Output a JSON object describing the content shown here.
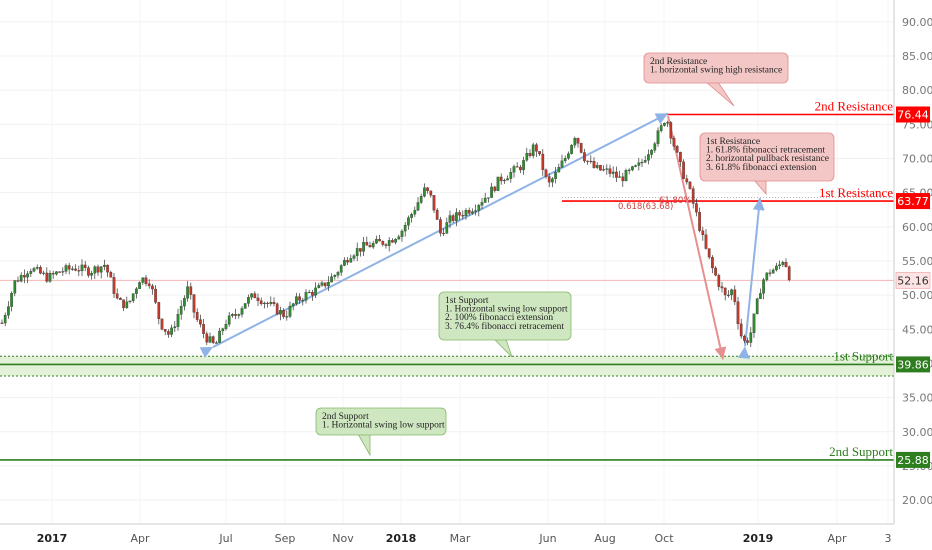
{
  "chart_data": {
    "type": "candlestick",
    "ylim": [
      16.5,
      93.2
    ],
    "x_ticks": [
      {
        "label": "2017",
        "bold": true
      },
      {
        "label": "Apr",
        "bold": false
      },
      {
        "label": "Jul",
        "bold": false
      },
      {
        "label": "Sep",
        "bold": false
      },
      {
        "label": "Nov",
        "bold": false
      },
      {
        "label": "2018",
        "bold": true
      },
      {
        "label": "Mar",
        "bold": false
      },
      {
        "label": "Jun",
        "bold": false
      },
      {
        "label": "Aug",
        "bold": false
      },
      {
        "label": "Oct",
        "bold": false
      },
      {
        "label": "2019",
        "bold": true
      },
      {
        "label": "Apr",
        "bold": false
      },
      {
        "label": "3",
        "bold": false
      }
    ],
    "y_ticks": [
      "20.00",
      "25.00",
      "30.00",
      "35.00",
      "40.00",
      "45.00",
      "50.00",
      "55.00",
      "60.00",
      "65.00",
      "70.00",
      "75.00",
      "80.00",
      "85.00",
      "90.00"
    ],
    "y_tick_values": [
      20,
      25,
      30,
      35,
      40,
      45,
      50,
      55,
      60,
      65,
      70,
      75,
      80,
      85,
      90
    ],
    "levels": [
      {
        "name": "2nd Resistance",
        "value": 76.44,
        "badge": "76.44",
        "color": "#ff0000"
      },
      {
        "name": "1st Resistance",
        "value": 63.77,
        "badge": "63.77",
        "color": "#ff0000"
      },
      {
        "name": "1st Support",
        "value": 39.86,
        "badge": "39.86",
        "color": "#2e7d1e"
      },
      {
        "name": "2nd Support",
        "value": 25.88,
        "badge": "25.88",
        "color": "#2e7d1e"
      }
    ],
    "current_price": {
      "value": 52.16,
      "badge": "52.16"
    },
    "fib_labels": [
      "0.618(63.68)",
      "61.80%"
    ],
    "annotations": [
      {
        "id": "res2",
        "lines": [
          "2nd Resistance",
          "1. horizontal swing high resistance"
        ]
      },
      {
        "id": "res1",
        "lines": [
          "1st Resistance",
          "1. 61.8% fibonacci retracement",
          "2. horizontal pullback resistance",
          "3. 61.8% fibonacci extension"
        ]
      },
      {
        "id": "sup1",
        "lines": [
          "1st Support",
          "1. Horizontal swing low support",
          "2. 100% fibonacci extension",
          "3. 76.4% fibonacci retracement"
        ]
      },
      {
        "id": "sup2",
        "lines": [
          "2nd Support",
          "1. Horizontal swing low support"
        ]
      }
    ],
    "price_path": [
      [
        0,
        45
      ],
      [
        15,
        52
      ],
      [
        30,
        54
      ],
      [
        48,
        52.5
      ],
      [
        60,
        53.5
      ],
      [
        75,
        54
      ],
      [
        90,
        53.5
      ],
      [
        105,
        54.5
      ],
      [
        118,
        49
      ],
      [
        128,
        48.5
      ],
      [
        140,
        52.5
      ],
      [
        150,
        52
      ],
      [
        160,
        46
      ],
      [
        170,
        44
      ],
      [
        180,
        48
      ],
      [
        188,
        51
      ],
      [
        195,
        47
      ],
      [
        205,
        44
      ],
      [
        215,
        42.5
      ],
      [
        225,
        46
      ],
      [
        235,
        47
      ],
      [
        245,
        49
      ],
      [
        255,
        50
      ],
      [
        265,
        49
      ],
      [
        275,
        48
      ],
      [
        285,
        47
      ],
      [
        295,
        49
      ],
      [
        305,
        50
      ],
      [
        320,
        51
      ],
      [
        335,
        53
      ],
      [
        350,
        56
      ],
      [
        362,
        57
      ],
      [
        375,
        57.5
      ],
      [
        390,
        58
      ],
      [
        402,
        59.5
      ],
      [
        412,
        62
      ],
      [
        425,
        65.5
      ],
      [
        432,
        64
      ],
      [
        440,
        59
      ],
      [
        450,
        61
      ],
      [
        462,
        62
      ],
      [
        475,
        63
      ],
      [
        490,
        65
      ],
      [
        500,
        67
      ],
      [
        512,
        68
      ],
      [
        522,
        69
      ],
      [
        535,
        72
      ],
      [
        542,
        69
      ],
      [
        548,
        66
      ],
      [
        555,
        67.5
      ],
      [
        565,
        70
      ],
      [
        575,
        73.5
      ],
      [
        585,
        70
      ],
      [
        595,
        68.5
      ],
      [
        610,
        68
      ],
      [
        620,
        67
      ],
      [
        630,
        68
      ],
      [
        640,
        69
      ],
      [
        650,
        71.5
      ],
      [
        660,
        74
      ],
      [
        666,
        76.3
      ],
      [
        672,
        73
      ],
      [
        680,
        69
      ],
      [
        688,
        66
      ],
      [
        696,
        62
      ],
      [
        705,
        57
      ],
      [
        712,
        54
      ],
      [
        718,
        52
      ],
      [
        726,
        49.5
      ],
      [
        733,
        51
      ],
      [
        740,
        44.5
      ],
      [
        745,
        43
      ],
      [
        750,
        44
      ],
      [
        756,
        48
      ],
      [
        762,
        52
      ],
      [
        770,
        53.5
      ],
      [
        778,
        54
      ],
      [
        784,
        55.5
      ],
      [
        790,
        52.5
      ]
    ]
  }
}
